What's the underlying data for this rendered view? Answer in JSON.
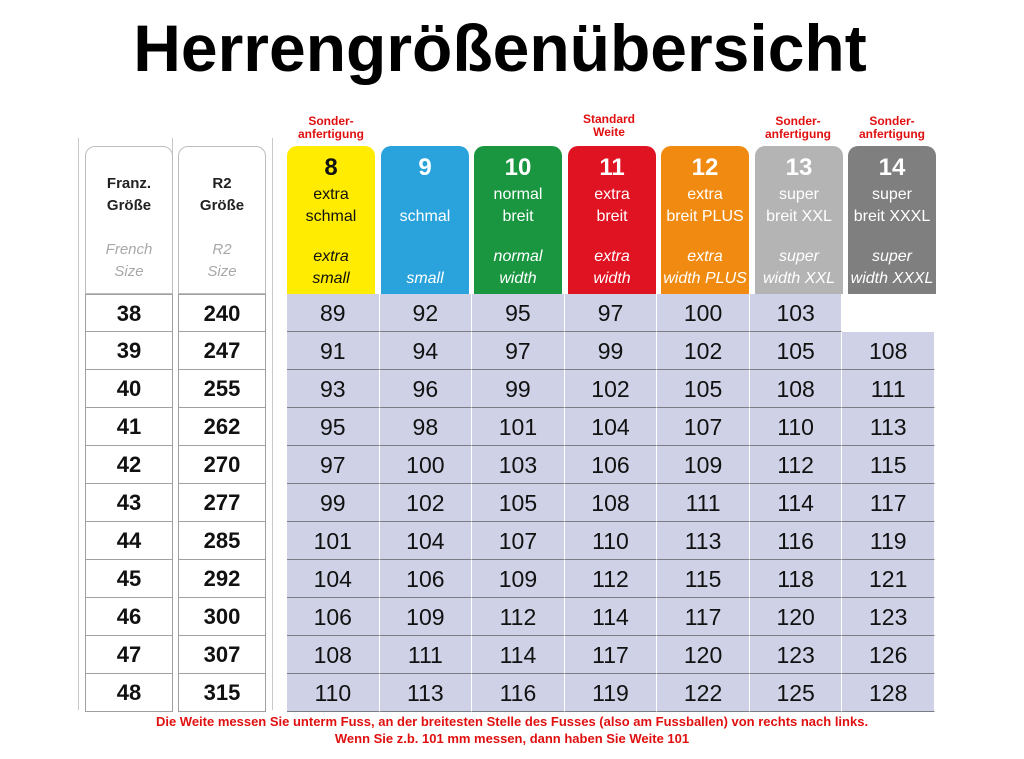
{
  "title": "Herrengrößenübersicht",
  "notes": {
    "w8": [
      "Sonder-",
      "anfertigung"
    ],
    "w11": [
      "Standard",
      "Weite"
    ],
    "w13": [
      "Sonder-",
      "anfertigung"
    ],
    "w14": [
      "Sonder-",
      "anfertigung"
    ]
  },
  "left_headers": [
    {
      "de1": "Franz.",
      "de2": "Größe",
      "en1": "French",
      "en2": "Size"
    },
    {
      "de1": "R2",
      "de2": "Größe",
      "en1": "R2",
      "en2": "Size"
    }
  ],
  "widths": [
    {
      "num": "8",
      "de1": "extra",
      "de2": "schmal",
      "en1": "extra",
      "en2": "small",
      "color": "#ffec00",
      "dark": true
    },
    {
      "num": "9",
      "de1": "",
      "de2": "schmal",
      "en1": "",
      "en2": "small",
      "color": "#2aa3dc",
      "dark": false
    },
    {
      "num": "10",
      "de1": "normal",
      "de2": "breit",
      "en1": "normal",
      "en2": "width",
      "color": "#1a9640",
      "dark": false
    },
    {
      "num": "11",
      "de1": "extra",
      "de2": "breit",
      "en1": "extra",
      "en2": "width",
      "color": "#e01322",
      "dark": false
    },
    {
      "num": "12",
      "de1": "extra",
      "de2": "breit PLUS",
      "en1": "extra",
      "en2": "width PLUS",
      "color": "#f08a10",
      "dark": false
    },
    {
      "num": "13",
      "de1": "super",
      "de2": "breit XXL",
      "en1": "super",
      "en2": "width XXL",
      "color": "#b4b4b4",
      "dark": false
    },
    {
      "num": "14",
      "de1": "super",
      "de2": "breit XXXL",
      "en1": "super",
      "en2": "width XXXL",
      "color": "#7f7f7f",
      "dark": false
    }
  ],
  "french_sizes": [
    "38",
    "39",
    "40",
    "41",
    "42",
    "43",
    "44",
    "45",
    "46",
    "47",
    "48"
  ],
  "r2_sizes": [
    "240",
    "247",
    "255",
    "262",
    "270",
    "277",
    "285",
    "292",
    "300",
    "307",
    "315"
  ],
  "table": [
    [
      "89",
      "92",
      "95",
      "97",
      "100",
      "103",
      ""
    ],
    [
      "91",
      "94",
      "97",
      "99",
      "102",
      "105",
      "108"
    ],
    [
      "93",
      "96",
      "99",
      "102",
      "105",
      "108",
      "111"
    ],
    [
      "95",
      "98",
      "101",
      "104",
      "107",
      "110",
      "113"
    ],
    [
      "97",
      "100",
      "103",
      "106",
      "109",
      "112",
      "115"
    ],
    [
      "99",
      "102",
      "105",
      "108",
      "111",
      "114",
      "117"
    ],
    [
      "101",
      "104",
      "107",
      "110",
      "113",
      "116",
      "119"
    ],
    [
      "104",
      "106",
      "109",
      "112",
      "115",
      "118",
      "121"
    ],
    [
      "106",
      "109",
      "112",
      "114",
      "117",
      "120",
      "123"
    ],
    [
      "108",
      "111",
      "114",
      "117",
      "120",
      "123",
      "126"
    ],
    [
      "110",
      "113",
      "116",
      "119",
      "122",
      "125",
      "128"
    ]
  ],
  "footer": {
    "line1": "Die Weite messen Sie unterm Fuss, an der breitesten Stelle des Fusses (also am Fussballen) von rechts nach links.",
    "line2": "Wenn Sie z.b. 101 mm messen, dann haben Sie Weite 101"
  }
}
